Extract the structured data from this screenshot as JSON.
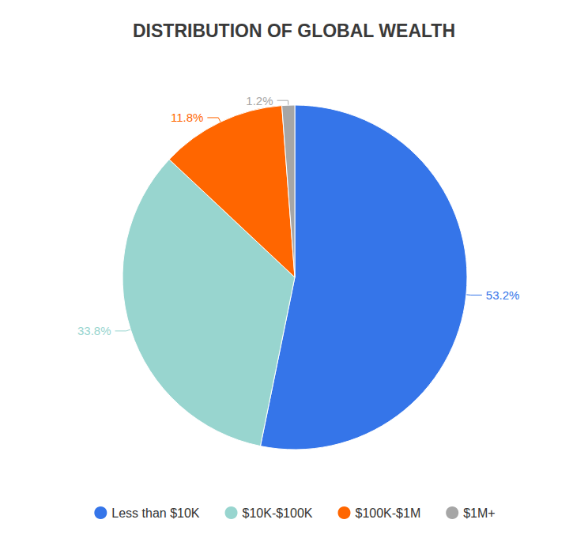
{
  "chart_data": {
    "type": "pie",
    "title": "DISTRIBUTION OF GLOBAL WEALTH",
    "categories": [
      "Less than $10K",
      "$10K-$100K",
      "$100K-$1M",
      "$1M+"
    ],
    "values": [
      53.2,
      33.8,
      11.8,
      1.2
    ],
    "value_labels": [
      "53.2%",
      "33.8%",
      "11.8%",
      "1.2%"
    ],
    "colors": [
      "#3575e9",
      "#98d5cf",
      "#ff6600",
      "#a6a6a6"
    ],
    "data_labels": true,
    "legend": "bottom"
  }
}
